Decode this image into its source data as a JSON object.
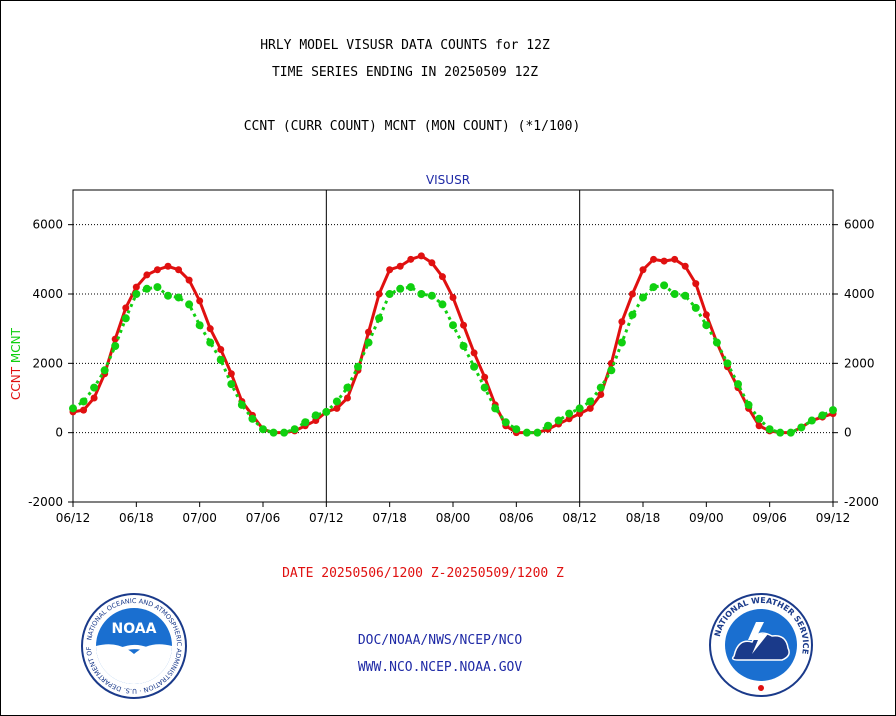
{
  "header": {
    "line1": "HRLY MODEL VISUSR DATA COUNTS for 12Z",
    "line2": "TIME SERIES ENDING IN 20250509 12Z",
    "line3": "CCNT (CURR COUNT) MCNT (MON COUNT) (*1/100)"
  },
  "chart_data": {
    "type": "line",
    "title": "VISUSR",
    "ylabel_parts": [
      {
        "text": "CCNT",
        "color": "#e01010"
      },
      {
        "text": "MCNT",
        "color": "#10d010"
      }
    ],
    "ylim": [
      -2000,
      7000
    ],
    "y_ticks": [
      -2000,
      0,
      2000,
      4000,
      6000
    ],
    "y_tick_labels": [
      "-2000",
      "0",
      "2000",
      "4000",
      "6000"
    ],
    "xlim": [
      0,
      72
    ],
    "x_ticks": [
      0,
      6,
      12,
      18,
      24,
      30,
      36,
      42,
      48,
      54,
      60,
      66,
      72
    ],
    "x_tick_labels": [
      "06/12",
      "06/18",
      "07/00",
      "07/06",
      "07/12",
      "07/18",
      "08/00",
      "08/06",
      "08/12",
      "08/18",
      "09/00",
      "09/06",
      "09/12"
    ],
    "day_dividers": [
      24,
      48
    ],
    "grid": true,
    "series": [
      {
        "name": "CCNT",
        "color": "#e01010",
        "style": "solid",
        "values": [
          600,
          650,
          1000,
          1700,
          2700,
          3600,
          4200,
          4550,
          4700,
          4800,
          4700,
          4400,
          3800,
          3000,
          2400,
          1700,
          900,
          500,
          100,
          0,
          0,
          50,
          200,
          350,
          600,
          700,
          1000,
          1800,
          2900,
          4000,
          4700,
          4800,
          5000,
          5100,
          4900,
          4500,
          3900,
          3100,
          2300,
          1600,
          800,
          200,
          0,
          0,
          0,
          100,
          250,
          400,
          550,
          700,
          1100,
          2000,
          3200,
          4000,
          4700,
          5000,
          4950,
          5000,
          4800,
          4300,
          3400,
          2600,
          1900,
          1300,
          700,
          200,
          50,
          0,
          0,
          150,
          350,
          450,
          550
        ]
      },
      {
        "name": "MCNT",
        "color": "#10d010",
        "style": "dotted",
        "values": [
          700,
          900,
          1300,
          1800,
          2500,
          3300,
          4000,
          4150,
          4200,
          3950,
          3900,
          3700,
          3100,
          2600,
          2100,
          1400,
          800,
          400,
          100,
          0,
          0,
          100,
          300,
          500,
          600,
          900,
          1300,
          1900,
          2600,
          3300,
          4000,
          4150,
          4200,
          4000,
          3950,
          3700,
          3100,
          2500,
          1900,
          1300,
          700,
          300,
          100,
          0,
          0,
          200,
          350,
          550,
          700,
          900,
          1300,
          1800,
          2600,
          3400,
          3900,
          4200,
          4250,
          4000,
          3950,
          3600,
          3100,
          2600,
          2000,
          1400,
          800,
          400,
          100,
          0,
          0,
          150,
          350,
          500,
          650
        ]
      }
    ]
  },
  "footer": {
    "date_range": "DATE 20250506/1200 Z-20250509/1200 Z",
    "org_path": "DOC/NOAA/NWS/NCEP/NCO",
    "website": "WWW.NCO.NCEP.NOAA.GOV"
  },
  "logos": {
    "noaa": {
      "inner_text": "NOAA",
      "ring_text": "NATIONAL OCEANIC AND ATMOSPHERIC ADMINISTRATION · U.S. DEPARTMENT OF COMMERCE"
    },
    "nws": {
      "ring_text": "NATIONAL WEATHER SERVICE"
    }
  },
  "colors": {
    "ccnt": "#e01010",
    "mcnt": "#10d010",
    "title_blue": "#1f2aa6",
    "axis": "#000000"
  }
}
